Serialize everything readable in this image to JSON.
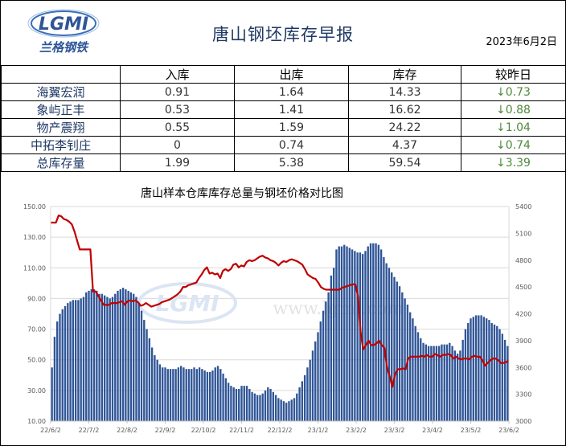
{
  "header": {
    "logo_text": "LGMI",
    "logo_cn": "兰格钢铁",
    "title": "唐山钢坯库存早报",
    "date": "2023年6月2日"
  },
  "table": {
    "columns": [
      "",
      "入库",
      "出库",
      "库存",
      "较昨日"
    ],
    "rows": [
      {
        "name": "海翼宏润",
        "in": "0.91",
        "out": "1.64",
        "stock": "14.33",
        "change": "↓0.73"
      },
      {
        "name": "象屿正丰",
        "in": "0.53",
        "out": "1.41",
        "stock": "16.62",
        "change": "↓0.88"
      },
      {
        "name": "物产震翔",
        "in": "0.55",
        "out": "1.59",
        "stock": "24.22",
        "change": "↓1.04"
      },
      {
        "name": "中拓李钊庄",
        "in": "0",
        "out": "0.74",
        "stock": "4.37",
        "change": "↓0.74"
      },
      {
        "name": "总库存量",
        "in": "1.99",
        "out": "5.38",
        "stock": "59.54",
        "change": "↓3.39"
      }
    ]
  },
  "chart_data": {
    "type": "bar",
    "title": "唐山样本仓库库存总量与钢坯价格对比图",
    "watermark": "www.lgmi.com",
    "x_ticks": [
      "22/6/2",
      "22/7/2",
      "22/8/2",
      "22/9/2",
      "22/10/2",
      "22/11/2",
      "22/12/2",
      "23/1/2",
      "23/2/2",
      "23/3/2",
      "23/4/2",
      "23/5/2",
      "23/6/2"
    ],
    "y_left": {
      "min": 10,
      "max": 150,
      "ticks": [
        "10.00",
        "30.00",
        "50.00",
        "70.00",
        "90.00",
        "110.00",
        "130.00",
        "150.00"
      ]
    },
    "y_right": {
      "min": 3000,
      "max": 5400,
      "ticks": [
        "3000",
        "3300",
        "3600",
        "3900",
        "4200",
        "4500",
        "4800",
        "5100",
        "5400"
      ]
    },
    "colors": {
      "bar": "#2f5597",
      "line": "#c00000"
    },
    "series": [
      {
        "kind": "bar",
        "axis": "left",
        "values": [
          45,
          65,
          75,
          80,
          83,
          85,
          87,
          88,
          89,
          89,
          89,
          90,
          91,
          94,
          95,
          96,
          96,
          95,
          93,
          93,
          92,
          91,
          90,
          91,
          93,
          95,
          96,
          97,
          96,
          95,
          94,
          93,
          91,
          87,
          82,
          76,
          70,
          64,
          58,
          53,
          50,
          47,
          45,
          45,
          44,
          44,
          44,
          44,
          45,
          46,
          45,
          44,
          44,
          44,
          45,
          44,
          45,
          44,
          43,
          42,
          42,
          43,
          45,
          46,
          44,
          41,
          38,
          35,
          33,
          32,
          31,
          31,
          33,
          33,
          33,
          31,
          29,
          28,
          27,
          27,
          28,
          30,
          32,
          31,
          29,
          27,
          25,
          24,
          23,
          22,
          23,
          24,
          25,
          28,
          32,
          36,
          40,
          45,
          50,
          56,
          62,
          68,
          75,
          82,
          88,
          94,
          105,
          110,
          122,
          124,
          124,
          125,
          124,
          123,
          122,
          121,
          120,
          120,
          119,
          121,
          124,
          126,
          126,
          126,
          125,
          122,
          117,
          113,
          110,
          107,
          104,
          101,
          98,
          94,
          90,
          86,
          81,
          77,
          72,
          68,
          64,
          61,
          60,
          59,
          59,
          59,
          59,
          59,
          60,
          60,
          60,
          61,
          59,
          56,
          54,
          56,
          63,
          70,
          74,
          77,
          78,
          79,
          79,
          79,
          78,
          77,
          76,
          74,
          73,
          72,
          70,
          67,
          63,
          59
        ]
      },
      {
        "kind": "line",
        "axis": "right",
        "values": [
          5220,
          5220,
          5220,
          5300,
          5290,
          5260,
          5250,
          5230,
          5200,
          5120,
          5020,
          4920,
          4920,
          4920,
          4920,
          4920,
          4450,
          4450,
          4400,
          4350,
          4300,
          4300,
          4300,
          4320,
          4320,
          4320,
          4330,
          4340,
          4300,
          4340,
          4350,
          4340,
          4350,
          4330,
          4290,
          4300,
          4320,
          4300,
          4280,
          4290,
          4300,
          4310,
          4330,
          4340,
          4350,
          4360,
          4380,
          4400,
          4420,
          4450,
          4500,
          4500,
          4520,
          4530,
          4540,
          4550,
          4600,
          4640,
          4690,
          4720,
          4650,
          4660,
          4640,
          4650,
          4600,
          4680,
          4700,
          4680,
          4700,
          4750,
          4760,
          4720,
          4740,
          4730,
          4780,
          4800,
          4790,
          4800,
          4820,
          4840,
          4850,
          4830,
          4820,
          4800,
          4790,
          4770,
          4740,
          4770,
          4790,
          4780,
          4800,
          4810,
          4800,
          4790,
          4770,
          4750,
          4700,
          4640,
          4620,
          4600,
          4590,
          4550,
          4500,
          4480,
          4470,
          4470,
          4470,
          4470,
          4470,
          4470,
          4490,
          4500,
          4510,
          4520,
          4530,
          4530,
          4400,
          4000,
          3800,
          3850,
          3900,
          3850,
          3850,
          3870,
          3900,
          3850,
          3820,
          3600,
          3500,
          3380,
          3520,
          3580,
          3580,
          3590,
          3580,
          3700,
          3720,
          3720,
          3720,
          3720,
          3730,
          3720,
          3740,
          3720,
          3720,
          3750,
          3740,
          3720,
          3740,
          3740,
          3750,
          3740,
          3700,
          3720,
          3700,
          3690,
          3700,
          3700,
          3690,
          3720,
          3730,
          3720,
          3720,
          3680,
          3620,
          3650,
          3680,
          3700,
          3700,
          3680,
          3650,
          3650,
          3660,
          3680
        ]
      }
    ]
  }
}
